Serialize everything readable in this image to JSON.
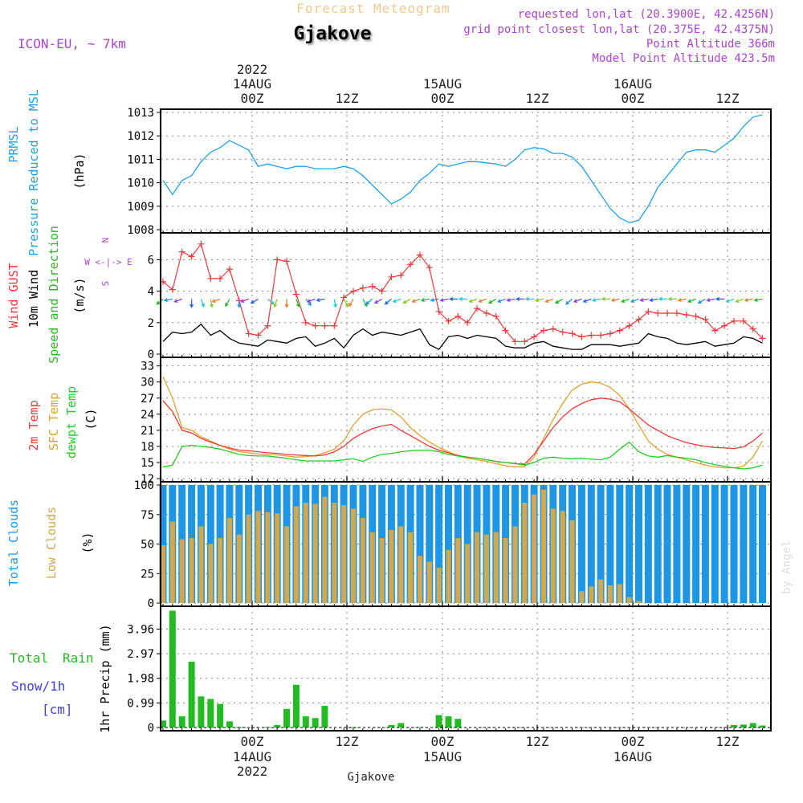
{
  "header": {
    "supertitle": "Forecast Meteogram",
    "location": "Gjakove",
    "model": "ICON-EU, ~ 7km",
    "requested": "requested lon,lat (20.3900E, 42.4256N)",
    "gridpoint": "grid point closest lon,lat (20.375E, 42.4375N)",
    "point_alt": "Point Altitude 366m",
    "model_alt": "Model Point Altitude 423.5m",
    "watermark": "by Angel",
    "footer": "Gjakove"
  },
  "colors": {
    "prmsl": "#1ea0e6",
    "gust": "#e83a3a",
    "wind": "#000000",
    "dir": "#22bb22",
    "t2m": "#e83a3a",
    "tsfc": "#e0a030",
    "dewpt": "#22cc22",
    "total_cloud": "#1e96e6",
    "low_cloud": "#d4a84a",
    "rain": "#22bb22",
    "snow": "#4040e0",
    "compass": "#aa44cc",
    "header_purple": "#aa44cc",
    "supertitle": "#f0c890",
    "grid": "#888888"
  },
  "chart_data": {
    "type": "meteogram",
    "time_axis": {
      "start": "2022-08-13 15Z",
      "step_hours": 1,
      "count": 64,
      "top_ticks": [
        {
          "time": "00Z",
          "date": "14AUG",
          "year": "2022"
        },
        {
          "time": "12Z",
          "date": "",
          "year": ""
        },
        {
          "time": "00Z",
          "date": "15AUG",
          "year": ""
        },
        {
          "time": "12Z",
          "date": "",
          "year": ""
        },
        {
          "time": "00Z",
          "date": "16AUG",
          "year": ""
        },
        {
          "time": "12Z",
          "date": "",
          "year": ""
        }
      ],
      "bottom_ticks": [
        {
          "time": "00Z",
          "date": "14AUG",
          "year": "2022"
        },
        {
          "time": "12Z",
          "date": "",
          "year": ""
        },
        {
          "time": "00Z",
          "date": "15AUG",
          "year": ""
        },
        {
          "time": "12Z",
          "date": "",
          "year": ""
        },
        {
          "time": "00Z",
          "date": "16AUG",
          "year": ""
        },
        {
          "time": "12Z",
          "date": "",
          "year": ""
        }
      ]
    },
    "panels": [
      {
        "id": "pressure",
        "labels": [
          "PRMSL",
          "Pressure Reduced to MSL"
        ],
        "unit": "(hPa)",
        "ylim": [
          1008,
          1013
        ],
        "yticks": [
          "1008",
          "1009",
          "1010",
          "1011",
          "1012",
          "1013"
        ],
        "series": [
          {
            "name": "PRMSL",
            "type": "line",
            "values": [
              1010.1,
              1009.5,
              1010.1,
              1010.3,
              1010.9,
              1011.3,
              1011.5,
              1011.8,
              1011.6,
              1011.4,
              1010.7,
              1010.8,
              1010.7,
              1010.6,
              1010.7,
              1010.7,
              1010.6,
              1010.6,
              1010.6,
              1010.7,
              1010.6,
              1010.3,
              1009.9,
              1009.5,
              1009.1,
              1009.3,
              1009.6,
              1010.1,
              1010.4,
              1010.8,
              1010.7,
              1010.8,
              1010.9,
              1010.9,
              1010.85,
              1010.8,
              1010.7,
              1011.0,
              1011.4,
              1011.5,
              1011.45,
              1011.25,
              1011.25,
              1011.1,
              1010.7,
              1010.1,
              1009.5,
              1008.9,
              1008.5,
              1008.3,
              1008.4,
              1009.0,
              1009.8,
              1010.3,
              1010.8,
              1011.3,
              1011.4,
              1011.4,
              1011.3,
              1011.6,
              1011.9,
              1012.4,
              1012.8,
              1012.9
            ]
          }
        ]
      },
      {
        "id": "wind",
        "labels": [
          "Wind GUST",
          "10m Wind",
          "Speed and Direction"
        ],
        "unit": "(m/s)",
        "ylim": [
          0,
          7.5
        ],
        "yticks": [
          "0",
          "2",
          "4",
          "6"
        ],
        "compass": [
          "N",
          "W <-|-> E",
          "S"
        ],
        "series": [
          {
            "name": "Wind GUST",
            "type": "line-marker",
            "values": [
              4.6,
              4.1,
              6.5,
              6.2,
              7.0,
              4.8,
              4.8,
              5.4,
              3.4,
              1.3,
              1.2,
              1.8,
              6.0,
              5.9,
              3.8,
              2.0,
              1.8,
              1.8,
              1.8,
              3.6,
              4.0,
              4.2,
              4.3,
              4.0,
              4.9,
              5.0,
              5.7,
              6.3,
              5.5,
              2.7,
              2.1,
              2.4,
              2.0,
              2.9,
              2.6,
              2.4,
              1.5,
              0.8,
              0.8,
              1.1,
              1.5,
              1.6,
              1.4,
              1.3,
              1.1,
              1.2,
              1.2,
              1.3,
              1.5,
              1.8,
              2.2,
              2.7,
              2.6,
              2.6,
              2.6,
              2.5,
              2.4,
              2.2,
              1.5,
              1.8,
              2.1,
              2.1,
              1.6,
              1.0
            ]
          },
          {
            "name": "10m Wind",
            "type": "line",
            "values": [
              0.8,
              1.4,
              1.3,
              1.4,
              1.9,
              1.2,
              1.5,
              1.0,
              0.7,
              0.6,
              0.5,
              0.9,
              0.8,
              0.7,
              1.0,
              1.1,
              0.5,
              0.7,
              1.0,
              0.4,
              1.2,
              1.6,
              1.2,
              1.4,
              1.3,
              1.2,
              1.4,
              1.6,
              0.6,
              0.3,
              1.1,
              1.2,
              1.0,
              1.2,
              1.1,
              1.0,
              0.5,
              0.4,
              0.4,
              0.7,
              0.8,
              0.5,
              0.4,
              0.3,
              0.3,
              0.6,
              0.6,
              0.6,
              0.5,
              0.6,
              0.7,
              1.3,
              1.1,
              1.0,
              0.7,
              0.6,
              0.7,
              0.8,
              0.5,
              0.6,
              0.7,
              1.1,
              1.0,
              0.7
            ]
          },
          {
            "name": "Direction",
            "type": "arrows",
            "values": [
              230,
              260,
              250,
              180,
              160,
              170,
              250,
              210,
              180,
              250,
              240,
              130,
              200,
              180,
              160,
              140,
              250,
              260,
              170,
              150,
              210,
              150,
              230,
              240,
              230,
              250,
              240,
              250,
              260,
              260,
              260,
              270,
              270,
              250,
              250,
              240,
              250,
              260,
              270,
              270,
              260,
              250,
              240,
              230,
              250,
              250,
              260,
              270,
              260,
              250,
              250,
              260,
              260,
              270,
              270,
              260,
              250,
              240,
              260,
              270,
              250,
              250,
              260,
              260
            ]
          }
        ]
      },
      {
        "id": "temperature",
        "labels": [
          "2m Temp",
          "SFC Temp",
          "dewpt Temp"
        ],
        "unit": "(C)",
        "ylim": [
          12,
          34
        ],
        "yticks": [
          "12",
          "15",
          "18",
          "21",
          "24",
          "27",
          "30",
          "33"
        ],
        "series": [
          {
            "name": "2m Temp",
            "type": "line",
            "values": [
              26.5,
              24.5,
              21.0,
              20.5,
              19.5,
              18.8,
              18.2,
              17.7,
              17.3,
              17.2,
              17.0,
              16.8,
              16.7,
              16.5,
              16.4,
              16.3,
              16.2,
              16.4,
              17.0,
              18.0,
              19.5,
              20.5,
              21.3,
              21.8,
              22.1,
              21.0,
              20.0,
              19.0,
              18.0,
              17.3,
              16.8,
              16.3,
              16.0,
              15.8,
              15.5,
              15.2,
              15.0,
              14.8,
              14.7,
              16.5,
              19.0,
              21.5,
              23.5,
              25.0,
              26.0,
              26.7,
              27.0,
              26.8,
              26.3,
              25.0,
              23.5,
              22.0,
              21.0,
              20.0,
              19.3,
              18.7,
              18.3,
              18.0,
              17.8,
              17.7,
              17.6,
              17.9,
              19.0,
              20.5
            ]
          },
          {
            "name": "SFC Temp",
            "type": "line",
            "values": [
              31.0,
              27.0,
              21.5,
              21.0,
              19.8,
              19.0,
              18.2,
              17.5,
              17.0,
              16.8,
              16.6,
              16.5,
              16.4,
              16.2,
              16.0,
              16.1,
              16.3,
              16.8,
              17.5,
              19.0,
              22.0,
              24.0,
              24.8,
              25.0,
              24.8,
              23.5,
              21.5,
              20.0,
              18.8,
              17.8,
              17.0,
              16.2,
              15.8,
              15.5,
              15.2,
              14.8,
              14.4,
              14.2,
              14.2,
              16.0,
              19.5,
              23.0,
              26.0,
              28.5,
              29.6,
              30.0,
              29.8,
              29.0,
              27.5,
              25.0,
              22.0,
              19.0,
              17.5,
              16.5,
              16.0,
              15.5,
              15.0,
              14.5,
              14.2,
              14.0,
              14.0,
              14.3,
              16.0,
              19.0
            ]
          },
          {
            "name": "dewpt Temp",
            "type": "line",
            "values": [
              14.2,
              14.5,
              18.0,
              18.2,
              18.0,
              17.8,
              17.5,
              17.0,
              16.5,
              16.3,
              16.2,
              16.2,
              16.0,
              15.8,
              15.5,
              15.3,
              15.3,
              15.3,
              15.3,
              15.5,
              15.7,
              15.2,
              16.0,
              16.5,
              16.7,
              17.0,
              17.2,
              17.3,
              17.3,
              17.0,
              16.5,
              16.2,
              16.0,
              15.8,
              15.5,
              15.2,
              15.0,
              14.8,
              14.5,
              15.0,
              15.8,
              16.0,
              15.8,
              15.7,
              15.8,
              15.6,
              15.5,
              16.0,
              17.5,
              18.8,
              17.0,
              16.2,
              16.0,
              16.3,
              16.0,
              15.8,
              15.5,
              15.0,
              14.6,
              14.3,
              14.0,
              13.8,
              14.0,
              14.5
            ]
          }
        ]
      },
      {
        "id": "clouds",
        "labels": [
          "Total Clouds",
          "Low Clouds"
        ],
        "unit": "(%)",
        "ylim": [
          0,
          100
        ],
        "yticks": [
          "0",
          "25",
          "50",
          "75",
          "100"
        ],
        "series": [
          {
            "name": "Total Clouds",
            "type": "bar",
            "values": [
              100,
              100,
              100,
              100,
              100,
              100,
              100,
              100,
              100,
              100,
              100,
              100,
              100,
              100,
              100,
              100,
              100,
              100,
              100,
              100,
              100,
              100,
              100,
              100,
              100,
              100,
              100,
              100,
              100,
              100,
              100,
              100,
              100,
              100,
              100,
              100,
              100,
              100,
              100,
              100,
              100,
              100,
              100,
              100,
              100,
              100,
              100,
              100,
              100,
              100,
              100,
              100,
              100,
              100,
              100,
              100,
              100,
              100,
              100,
              100,
              100,
              100,
              100,
              100
            ]
          },
          {
            "name": "Low Clouds",
            "type": "bar",
            "values": [
              49,
              69,
              54,
              55,
              65,
              50,
              55,
              72,
              58,
              75,
              78,
              77,
              76,
              65,
              82,
              85,
              84,
              90,
              85,
              83,
              80,
              72,
              60,
              55,
              62,
              65,
              60,
              40,
              35,
              30,
              45,
              55,
              50,
              60,
              58,
              60,
              55,
              65,
              85,
              92,
              96,
              80,
              78,
              70,
              10,
              14,
              20,
              15,
              16,
              5,
              2,
              0,
              0,
              0,
              0,
              0,
              0,
              0,
              0,
              0,
              0,
              0,
              0,
              0
            ]
          }
        ]
      },
      {
        "id": "precip",
        "labels": [
          "Total Rain",
          "Snow/1h",
          "[cm]"
        ],
        "unit": "1hr Precip (mm)",
        "ylim": [
          0,
          4.75
        ],
        "yticks": [
          "0",
          "0.99",
          "1.98",
          "2.97",
          "3.96"
        ],
        "series": [
          {
            "name": "Total Rain",
            "type": "bar",
            "values": [
              0.28,
              4.7,
              0.45,
              2.65,
              1.25,
              1.15,
              0.95,
              0.25,
              0.02,
              0,
              0,
              0.02,
              0.1,
              0.75,
              1.72,
              0.45,
              0.38,
              0.87,
              0,
              0,
              0.01,
              0,
              0,
              0,
              0.1,
              0.18,
              0,
              0.02,
              0,
              0.5,
              0.45,
              0.35,
              0,
              0,
              0,
              0,
              0,
              0,
              0,
              0,
              0,
              0,
              0,
              0,
              0,
              0,
              0,
              0,
              0,
              0,
              0,
              0,
              0,
              0,
              0,
              0,
              0,
              0,
              0,
              0,
              0.1,
              0.12,
              0.18,
              0.08
            ]
          }
        ]
      }
    ]
  }
}
